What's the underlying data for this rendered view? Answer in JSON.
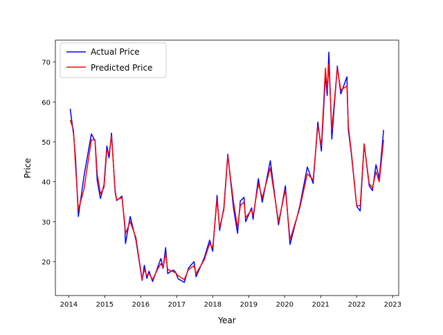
{
  "chart_data": {
    "type": "line",
    "title": "",
    "xlabel": "Year",
    "ylabel": "Price",
    "xlim": [
      "2013-08-18",
      "2023-03-03"
    ],
    "ylim": [
      11.5,
      75.5
    ],
    "x_ticks": [
      "2014",
      "2015",
      "2016",
      "2017",
      "2018",
      "2019",
      "2020",
      "2021",
      "2022",
      "2023"
    ],
    "y_ticks": [
      "20",
      "30",
      "40",
      "50",
      "60",
      "70"
    ],
    "grid": false,
    "legend": "top-left",
    "x": [
      "2014-01-15",
      "2014-02-18",
      "2014-03-10",
      "2014-04-08",
      "2014-06-03",
      "2014-08-18",
      "2014-09-24",
      "2014-10-16",
      "2014-11-18",
      "2014-12-24",
      "2015-01-22",
      "2015-02-14",
      "2015-03-10",
      "2015-04-16",
      "2015-05-01",
      "2015-06-24",
      "2015-07-23",
      "2015-07-30",
      "2015-09-16",
      "2015-11-13",
      "2016-01-15",
      "2016-02-06",
      "2016-03-03",
      "2016-03-25",
      "2016-05-01",
      "2016-06-18",
      "2016-07-24",
      "2016-08-15",
      "2016-09-10",
      "2016-10-01",
      "2016-11-25",
      "2016-12-20",
      "2017-01-15",
      "2017-03-18",
      "2017-05-01",
      "2017-06-25",
      "2017-07-16",
      "2017-10-08",
      "2017-12-01",
      "2018-01-01",
      "2018-02-14",
      "2018-03-12",
      "2018-04-24",
      "2018-06-03",
      "2018-07-30",
      "2018-09-10",
      "2018-10-08",
      "2018-11-15",
      "2018-12-01",
      "2019-01-30",
      "2019-02-14",
      "2019-04-08",
      "2019-05-18",
      "2019-08-08",
      "2019-10-30",
      "2020-01-08",
      "2020-02-24",
      "2020-06-03",
      "2020-08-18",
      "2020-10-16",
      "2020-12-03",
      "2021-01-08",
      "2021-02-18",
      "2021-03-08",
      "2021-03-25",
      "2021-04-24",
      "2021-06-18",
      "2021-07-24",
      "2021-09-24",
      "2021-10-08",
      "2021-11-08",
      "2022-01-01",
      "2022-02-06",
      "2022-03-18",
      "2022-05-08",
      "2022-06-10",
      "2022-07-16",
      "2022-08-18",
      "2022-10-01"
    ],
    "series": [
      {
        "name": "Actual Price",
        "color": "#0000ff",
        "values": [
          58.3,
          52,
          46,
          31.3,
          41.3,
          52,
          50.3,
          40.4,
          35.8,
          39.2,
          49,
          46,
          52.2,
          37.5,
          35.3,
          36.4,
          28.8,
          24.5,
          31.3,
          25.4,
          15.3,
          19.1,
          15.8,
          17.6,
          15,
          18.4,
          20.8,
          18.3,
          23.5,
          17,
          17.9,
          17.4,
          15.7,
          14.8,
          18.4,
          20,
          16.2,
          21,
          25.4,
          22.6,
          36.6,
          27.8,
          33.5,
          46.9,
          33.5,
          27.1,
          35.2,
          36.1,
          30,
          33.5,
          30.6,
          40.8,
          34.9,
          45.3,
          29.2,
          39,
          24.3,
          34,
          43.7,
          39.6,
          55,
          47.7,
          66.8,
          61.6,
          72.5,
          50.7,
          69,
          62,
          66.3,
          53,
          47,
          33.9,
          32.7,
          49.5,
          39,
          37.8,
          44.3,
          40.8,
          53
        ]
      },
      {
        "name": "Predicted Price",
        "color": "#ff0000",
        "values": [
          55.5,
          53,
          44,
          33,
          38,
          50.5,
          50.5,
          42,
          37,
          38.5,
          48,
          47,
          51.5,
          38,
          35.5,
          36,
          29.5,
          27,
          30,
          26,
          15.5,
          18,
          16.5,
          17,
          15.5,
          18,
          19.5,
          18.5,
          22,
          18,
          17.5,
          17.2,
          16.5,
          15.5,
          18,
          19,
          17,
          20.5,
          24.5,
          23.5,
          35.5,
          28.5,
          33,
          46.5,
          35,
          28.5,
          34,
          35,
          31,
          33,
          31.5,
          39.5,
          36,
          43.5,
          30,
          38,
          25.5,
          33.5,
          42,
          40.5,
          54,
          49,
          68.5,
          63,
          69.5,
          53,
          68.5,
          63,
          64,
          54,
          47.5,
          34,
          34,
          49.5,
          39.5,
          38.5,
          42.5,
          40,
          50.5
        ]
      }
    ]
  }
}
